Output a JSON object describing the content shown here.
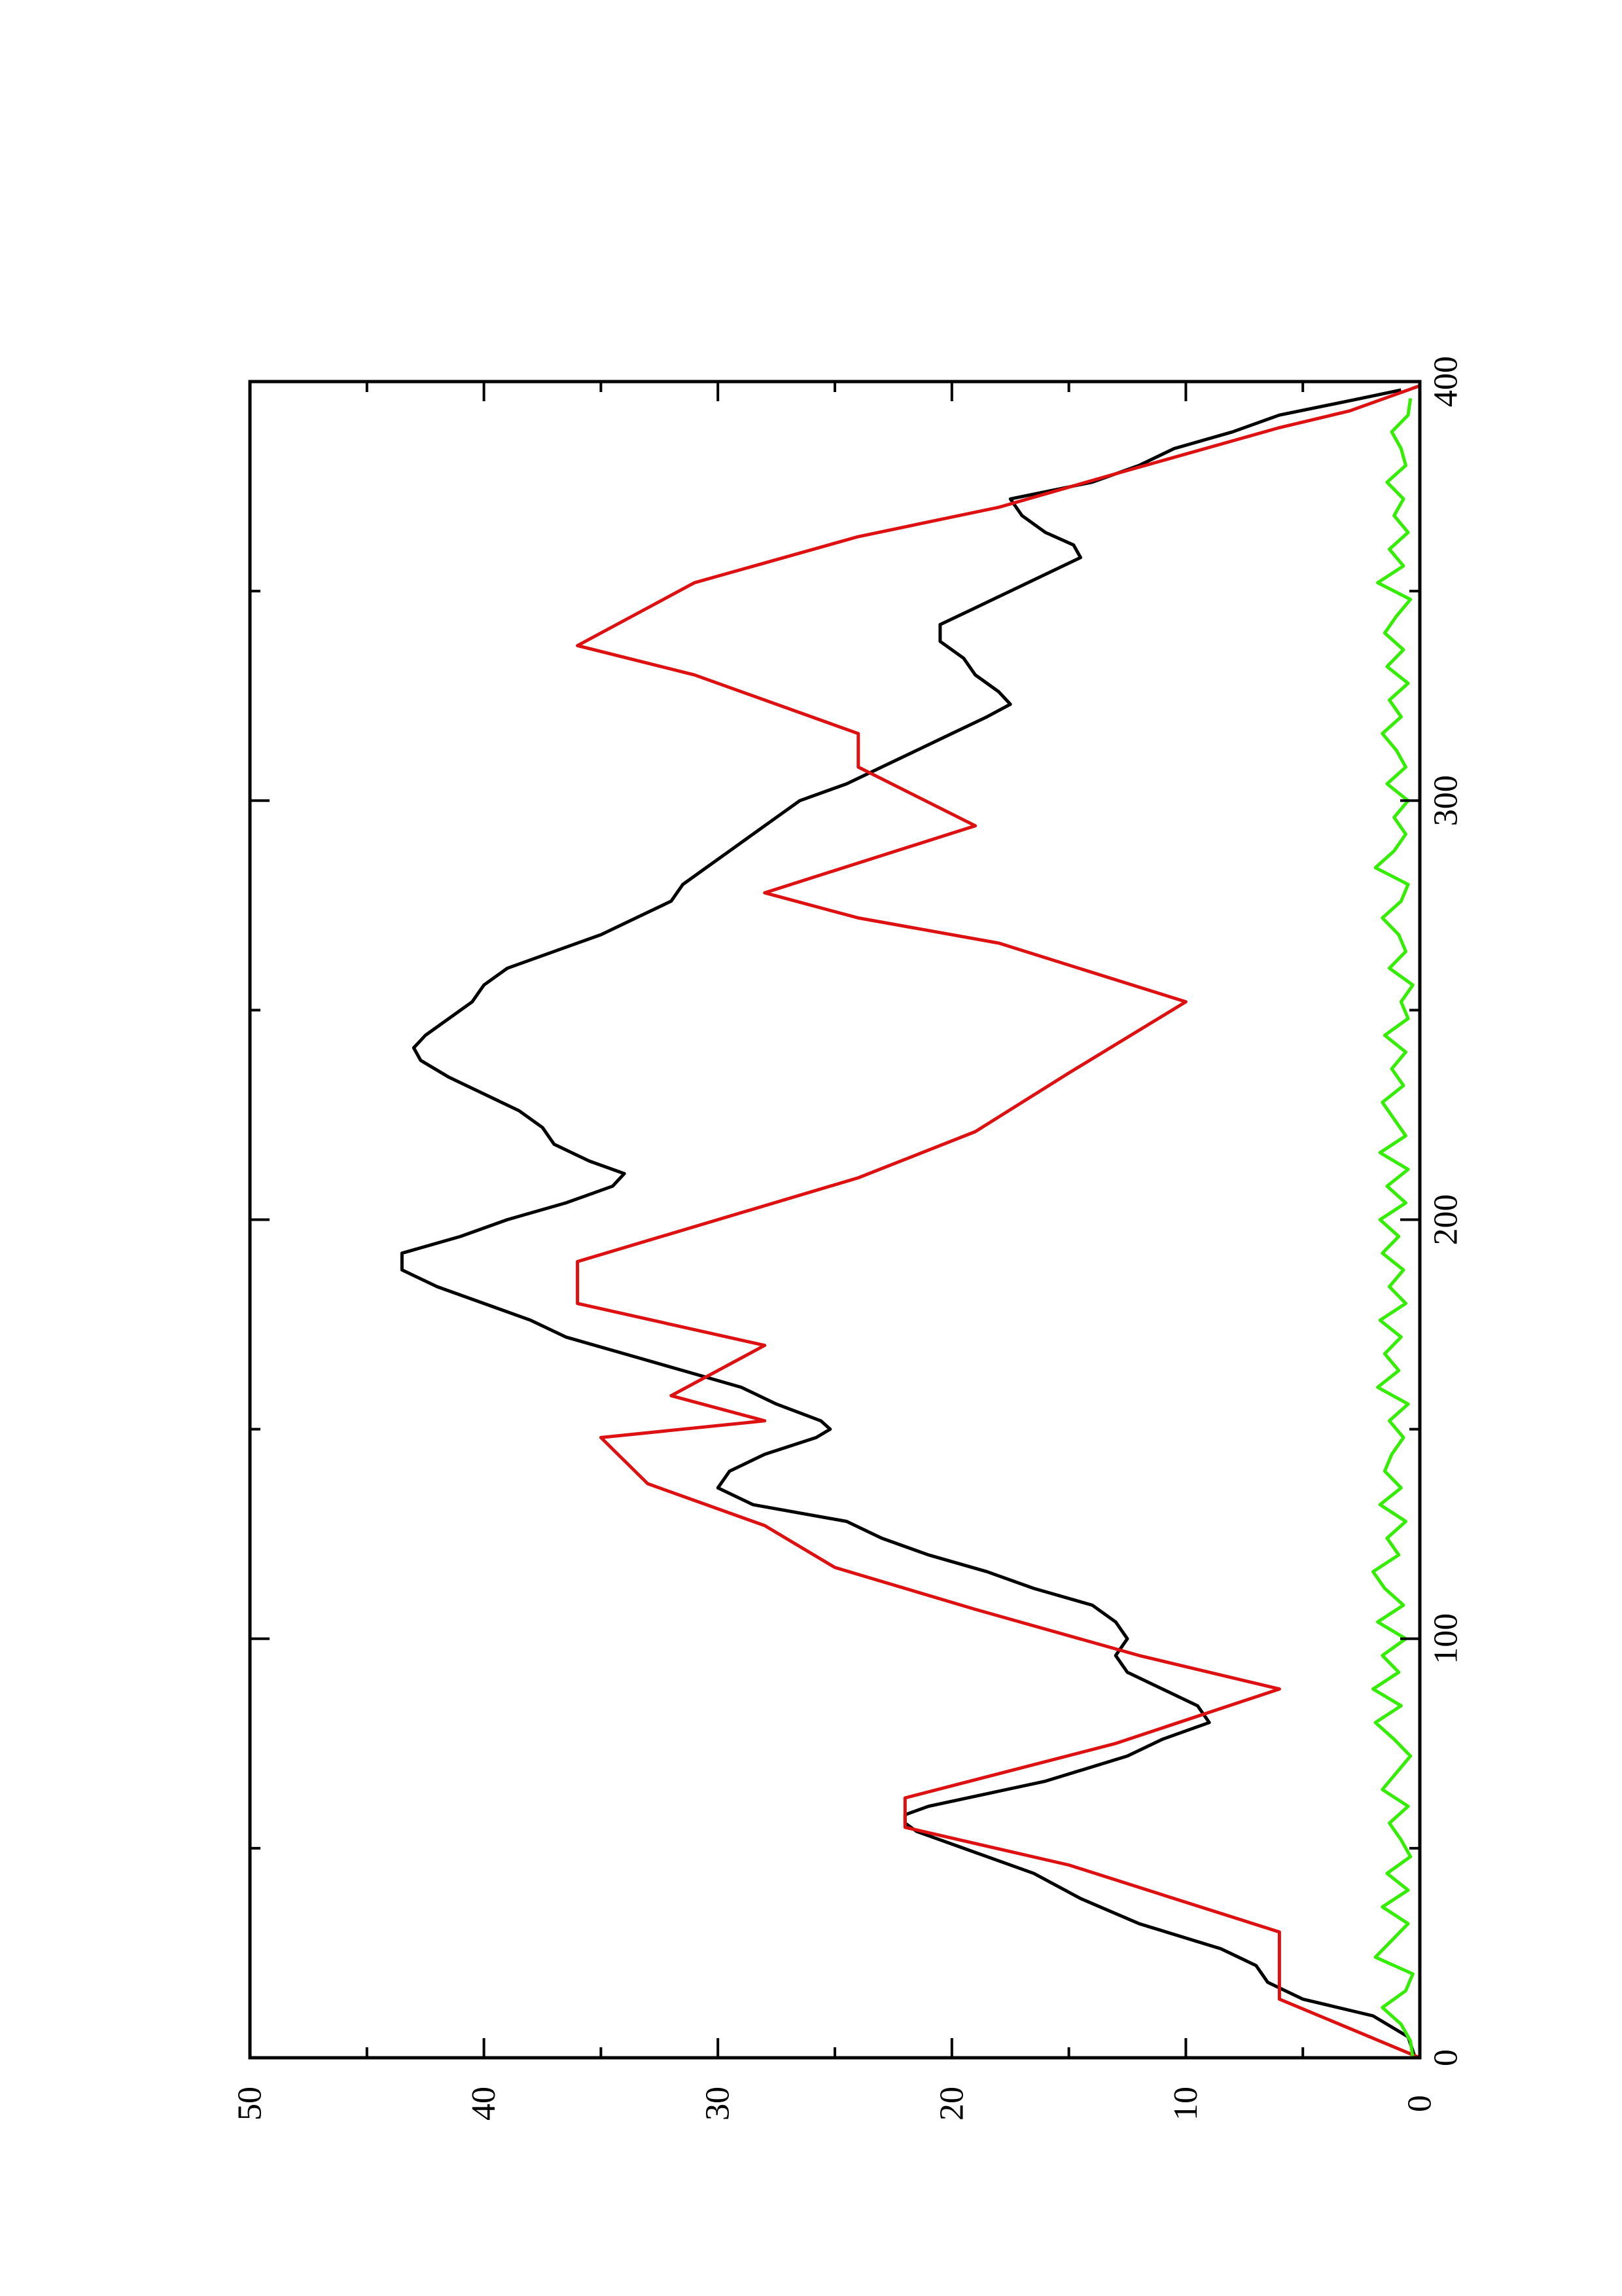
{
  "chart_data": {
    "type": "line",
    "orientation": "rotated-90-ccw",
    "title": "",
    "xlabel": "",
    "ylabel": "",
    "xlim": [
      0,
      400
    ],
    "ylim": [
      0,
      50
    ],
    "x_ticks": [
      0,
      100,
      200,
      300,
      400
    ],
    "x_minor_ticks": [
      50,
      150,
      250,
      350
    ],
    "y_ticks": [
      0,
      10,
      20,
      30,
      40,
      50
    ],
    "y_minor_ticks": [
      5,
      15,
      25,
      35,
      45
    ],
    "x_tick_labels": [
      "0",
      "100",
      "200",
      "300",
      "400"
    ],
    "y_tick_labels": [
      "0",
      "10",
      "20",
      "30",
      "40",
      "50"
    ],
    "grid": false,
    "legend": "none",
    "series": [
      {
        "color": "#000000",
        "x": [
          0,
          5,
          10,
          14,
          18,
          22,
          26,
          32,
          38,
          44,
          50,
          54,
          56,
          58,
          60,
          66,
          72,
          76,
          80,
          84,
          88,
          92,
          96,
          100,
          104,
          108,
          112,
          116,
          120,
          124,
          128,
          132,
          136,
          140,
          144,
          148,
          150,
          152,
          156,
          160,
          164,
          168,
          172,
          176,
          180,
          184,
          188,
          192,
          196,
          200,
          204,
          208,
          211,
          214,
          218,
          222,
          226,
          230,
          234,
          238,
          241,
          244,
          248,
          252,
          256,
          260,
          264,
          268,
          272,
          276,
          280,
          284,
          288,
          292,
          296,
          300,
          304,
          308,
          312,
          316,
          320,
          323,
          326,
          330,
          334,
          338,
          342,
          346,
          350,
          354,
          358,
          361,
          364,
          368,
          372,
          376,
          380,
          384,
          388,
          392,
          396,
          398
        ],
        "y": [
          0.2,
          0.5,
          2,
          5,
          6.5,
          7,
          8.5,
          12,
          14.5,
          16.5,
          19.5,
          21.5,
          22,
          22,
          21,
          16,
          12.5,
          11,
          9,
          9.5,
          11,
          12.5,
          13,
          12.5,
          13,
          14,
          16.5,
          18.5,
          21,
          23,
          24.5,
          28.5,
          30,
          29.5,
          28,
          25.8,
          25.2,
          25.6,
          27.5,
          29,
          31.5,
          34,
          36.5,
          38,
          40,
          42,
          43.5,
          43.5,
          41,
          39,
          36.5,
          34.5,
          34,
          35.5,
          37,
          37.5,
          38.5,
          40,
          41.5,
          42.7,
          43,
          42.5,
          41.5,
          40.5,
          40,
          39,
          37,
          35,
          33.5,
          32,
          31.5,
          30.5,
          29.5,
          28.5,
          27.5,
          26.5,
          24.5,
          23,
          21.5,
          20,
          18.5,
          17.5,
          18,
          19,
          19.5,
          20.5,
          20.5,
          19,
          17.5,
          16,
          14.5,
          14.8,
          16,
          17,
          17.5,
          14,
          12,
          10.5,
          8,
          6,
          2.5,
          0.8
        ]
      },
      {
        "color": "#dd1111",
        "x": [
          0,
          14,
          14,
          30,
          30,
          46,
          46,
          55,
          62,
          62,
          75,
          75,
          88,
          88,
          96,
          96,
          107,
          107,
          117,
          117,
          127,
          127,
          137,
          137,
          148,
          148,
          152,
          152,
          158,
          158,
          170,
          170,
          180,
          190,
          190,
          210,
          210,
          221,
          221,
          235,
          235,
          252,
          252,
          266,
          266,
          272,
          272,
          278,
          278,
          294,
          294,
          308,
          308,
          316,
          316,
          330,
          330,
          337,
          337,
          352,
          352,
          363,
          363,
          370,
          370,
          378,
          378,
          389,
          389,
          393,
          399
        ],
        "y": [
          0,
          6,
          6,
          6,
          6,
          15,
          15,
          22,
          22,
          22,
          13,
          13,
          6,
          6,
          12,
          12,
          19,
          19,
          25,
          25,
          28,
          28,
          33,
          33,
          35,
          35,
          28,
          28,
          32,
          32,
          28,
          28,
          36,
          36,
          36,
          24,
          24,
          19,
          19,
          15,
          15,
          10,
          10,
          18,
          18,
          24,
          24,
          28,
          28,
          19,
          19,
          24,
          24,
          24,
          24,
          31,
          31,
          36,
          36,
          31,
          31,
          24,
          24,
          18,
          18,
          13,
          13,
          6,
          6,
          3,
          0
        ]
      },
      {
        "color": "#33ee00",
        "x": [
          0,
          4,
          8,
          12,
          16,
          20,
          24,
          28,
          32,
          36,
          40,
          44,
          48,
          52,
          56,
          60,
          64,
          68,
          72,
          76,
          80,
          84,
          88,
          92,
          96,
          100,
          104,
          108,
          112,
          116,
          120,
          124,
          128,
          132,
          136,
          140,
          144,
          148,
          152,
          156,
          160,
          164,
          168,
          172,
          176,
          180,
          184,
          188,
          192,
          196,
          200,
          204,
          208,
          212,
          216,
          220,
          224,
          228,
          232,
          236,
          240,
          244,
          248,
          252,
          256,
          260,
          264,
          268,
          272,
          276,
          280,
          284,
          288,
          292,
          296,
          300,
          304,
          308,
          312,
          316,
          320,
          324,
          328,
          332,
          336,
          340,
          344,
          348,
          352,
          356,
          360,
          364,
          368,
          372,
          376,
          380,
          384,
          388,
          392,
          396
        ],
        "y": [
          0.3,
          0.4,
          0.8,
          1.6,
          0.6,
          0.3,
          1.9,
          1.2,
          0.5,
          1.6,
          0.5,
          1.4,
          0.4,
          0.8,
          1.3,
          0.5,
          1.6,
          1.0,
          0.4,
          1.1,
          1.9,
          0.8,
          2.0,
          0.9,
          1.6,
          0.6,
          1.8,
          0.7,
          1.5,
          2.0,
          0.9,
          1.4,
          0.6,
          1.7,
          0.8,
          1.5,
          1.2,
          0.7,
          1.3,
          0.5,
          1.8,
          0.9,
          1.5,
          0.8,
          1.7,
          0.6,
          1.3,
          0.7,
          1.6,
          0.9,
          1.7,
          0.6,
          1.4,
          0.5,
          1.7,
          0.6,
          1.1,
          1.6,
          0.7,
          1.2,
          0.6,
          1.5,
          0.5,
          0.8,
          0.3,
          1.3,
          0.6,
          0.9,
          1.6,
          0.8,
          0.5,
          1.9,
          1.1,
          0.6,
          1.1,
          0.5,
          1.4,
          0.6,
          1.0,
          1.6,
          0.8,
          1.3,
          0.5,
          1.4,
          0.7,
          1.5,
          1.0,
          0.4,
          1.8,
          0.7,
          1.3,
          0.5,
          1.1,
          0.7,
          1.4,
          0.6,
          0.8,
          1.2,
          0.5,
          0.4
        ]
      }
    ]
  }
}
